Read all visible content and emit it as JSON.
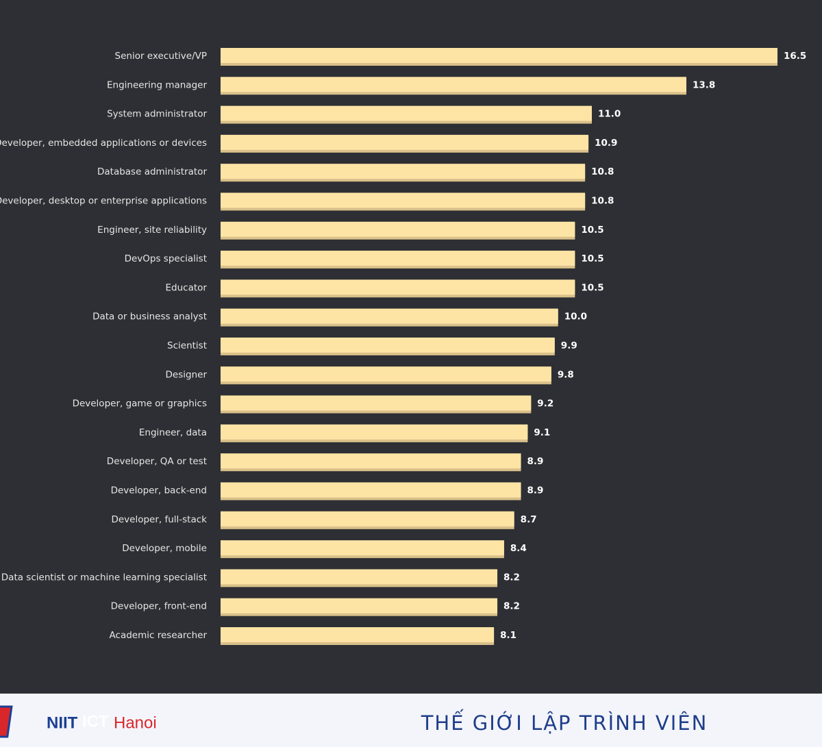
{
  "chart_data": {
    "type": "bar",
    "orientation": "horizontal",
    "color": "#fde4a5",
    "categories": [
      "Senior executive/VP",
      "Engineering manager",
      "System administrator",
      "Developer, embedded applications or devices",
      "Database administrator",
      "Developer, desktop or enterprise applications",
      "Engineer, site reliability",
      "DevOps specialist",
      "Educator",
      "Data or business analyst",
      "Scientist",
      "Designer",
      "Developer, game or graphics",
      "Engineer, data",
      "Developer, QA or test",
      "Developer, back-end",
      "Developer, full-stack",
      "Developer, mobile",
      "Data scientist or machine learning specialist",
      "Developer, front-end",
      "Academic researcher"
    ],
    "values": [
      16.5,
      13.8,
      11.0,
      10.9,
      10.8,
      10.8,
      10.5,
      10.5,
      10.5,
      10.0,
      9.9,
      9.8,
      9.2,
      9.1,
      8.9,
      8.9,
      8.7,
      8.4,
      8.2,
      8.2,
      8.1
    ],
    "value_labels": [
      "16.5",
      "13.8",
      "11.0",
      "10.9",
      "10.8",
      "10.8",
      "10.5",
      "10.5",
      "10.5",
      "10.0",
      "9.9",
      "9.8",
      "9.2",
      "9.1",
      "8.9",
      "8.9",
      "8.7",
      "8.4",
      "8.2",
      "8.2",
      "8.1"
    ]
  },
  "footer": {
    "logo": {
      "left": "NIIT",
      "middle": "ICT",
      "right": "Hanoi"
    },
    "tagline": "THẾ GIỚI LẬP TRÌNH VIÊN"
  }
}
